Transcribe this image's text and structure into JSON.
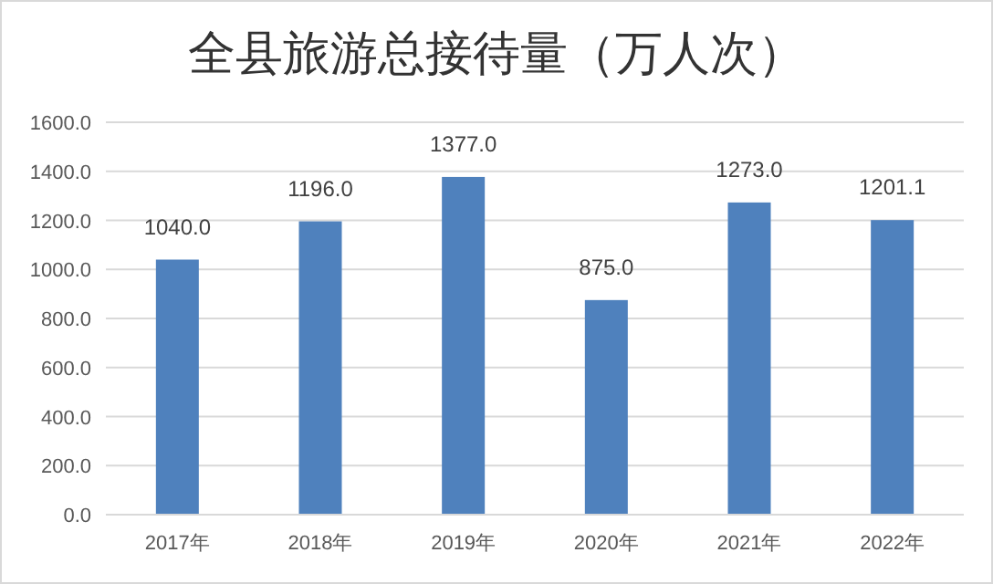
{
  "chart_data": {
    "type": "bar",
    "title": "全县旅游总接待量（万人次）",
    "categories": [
      "2017年",
      "2018年",
      "2019年",
      "2020年",
      "2021年",
      "2022年"
    ],
    "values": [
      1040.0,
      1196.0,
      1377.0,
      875.0,
      1273.0,
      1201.1
    ],
    "value_labels": [
      "1040.0",
      "1196.0",
      "1377.0",
      "875.0",
      "1273.0",
      "1201.1"
    ],
    "color": "#4f81bd",
    "ylim": [
      0,
      1600
    ],
    "yticks": [
      {
        "value": 0,
        "label": "0.0"
      },
      {
        "value": 200,
        "label": "200.0"
      },
      {
        "value": 400,
        "label": "400.0"
      },
      {
        "value": 600,
        "label": "600.0"
      },
      {
        "value": 800,
        "label": "800.0"
      },
      {
        "value": 1000,
        "label": "1000.0"
      },
      {
        "value": 1200,
        "label": "1200.0"
      },
      {
        "value": 1400,
        "label": "1400.0"
      },
      {
        "value": 1600,
        "label": "1600.0"
      }
    ],
    "grid": "y"
  }
}
